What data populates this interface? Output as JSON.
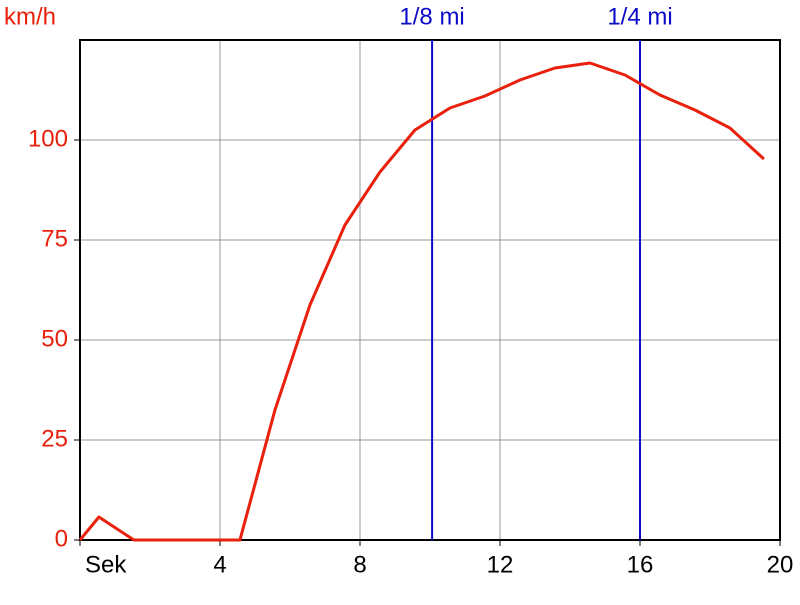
{
  "chart_data": {
    "type": "line",
    "y_label": "km/h",
    "x": [
      0,
      0.54,
      1.54,
      4.57,
      5.57,
      6.57,
      7.57,
      8.57,
      9.57,
      10.57,
      11.57,
      12.57,
      13.57,
      14.57,
      15.57,
      16.57,
      17.57,
      18.57,
      19.54
    ],
    "series": [
      {
        "name": "speed",
        "color": "#e8200c",
        "values": [
          0,
          5.75,
          0,
          0,
          32.5,
          58.75,
          78.75,
          92,
          102.5,
          108,
          111,
          115,
          118,
          119.25,
          116.25,
          111.25,
          107.5,
          103,
          95.25
        ]
      }
    ],
    "xlim": [
      0,
      20
    ],
    "xticks": [
      {
        "value": 0,
        "label": "Sek"
      },
      4,
      8,
      12,
      16,
      20
    ],
    "ylim": [
      0,
      125
    ],
    "yticks": [
      0,
      25,
      50,
      75,
      100
    ],
    "grid": true,
    "markers": [
      {
        "x": 10.06,
        "label": "1/8 mi"
      },
      {
        "x": 16,
        "label": "1/4 mi"
      }
    ],
    "marker_color": "#0a0ac8",
    "y_tick_color": "#e8200c"
  }
}
